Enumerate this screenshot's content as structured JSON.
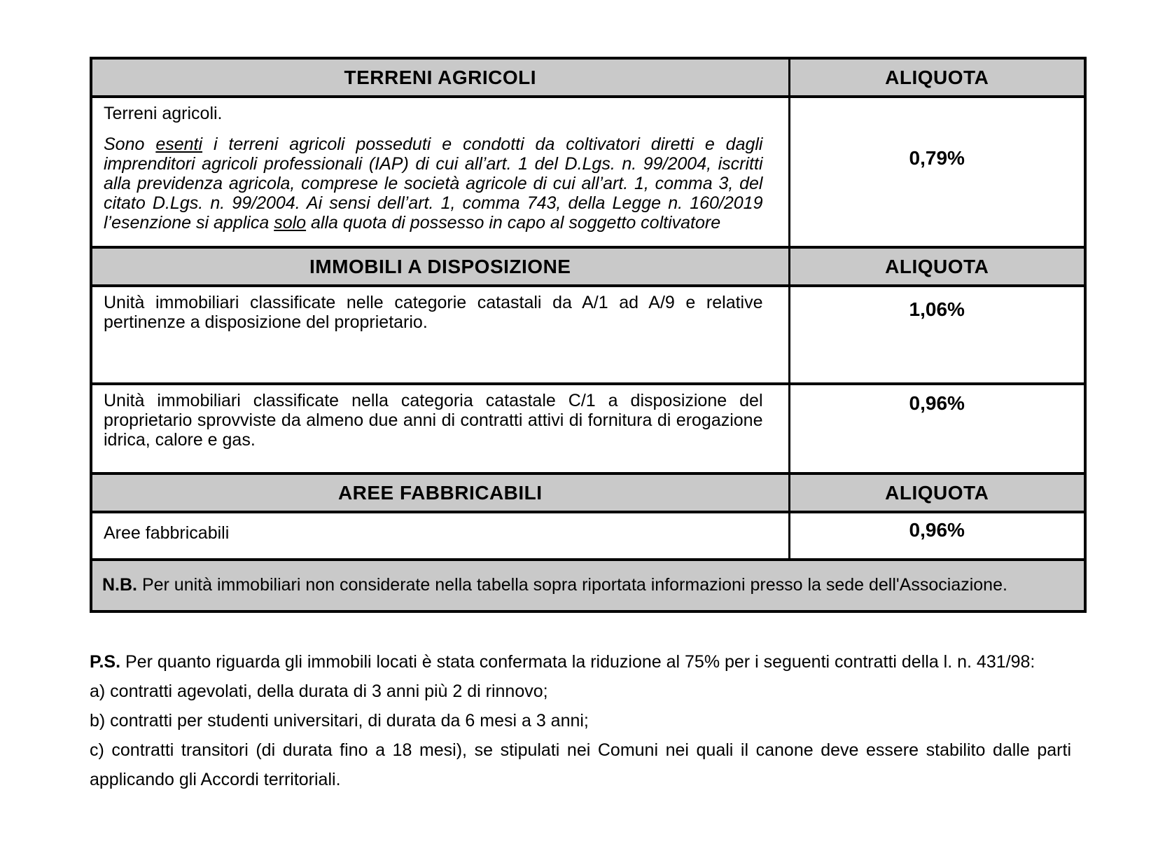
{
  "colors": {
    "page_bg": "#ffffff",
    "header_bg": "#c9c9c9",
    "border": "#000000",
    "text": "#000000"
  },
  "table": {
    "sections": [
      {
        "title": "TERRENI AGRICOLI",
        "aliquota_label": "ALIQUOTA",
        "lead": "Terreni agricoli.",
        "exempt_note_segments": [
          {
            "t": "Sono "
          },
          {
            "t": "esenti",
            "u": true
          },
          {
            "t": " i terreni agricoli posseduti e condotti da coltivatori diretti e dagli imprenditori agricoli professionali (IAP) di cui all’art. 1 del D.Lgs. n. 99/2004, iscritti alla previdenza agricola, comprese le società agricole di cui all’art. 1, comma 3, del citato D.Lgs. n. 99/2004. Ai sensi dell’art. 1, comma 743, della Legge n. 160/2019 l’esenzione si applica "
          },
          {
            "t": "solo",
            "u": true
          },
          {
            "t": " alla quota di possesso in capo al soggetto coltivatore"
          }
        ],
        "rate": "0,79%"
      },
      {
        "title": "IMMOBILI A DISPOSIZIONE",
        "aliquota_label": "ALIQUOTA",
        "rows": [
          {
            "text": "Unità immobiliari classificate nelle categorie catastali da A/1 ad A/9 e relative pertinenze a disposizione del proprietario.",
            "rate": "1,06%"
          },
          {
            "text": "Unità immobiliari classificate nella categoria catastale C/1 a disposizione del proprietario sprovviste da almeno due anni di contratti attivi di fornitura di erogazione idrica, calore e gas.",
            "rate": "0,96%"
          }
        ]
      },
      {
        "title": "AREE FABBRICABILI",
        "aliquota_label": "ALIQUOTA",
        "rows": [
          {
            "text": "Aree fabbricabili",
            "rate": "0,96%"
          }
        ]
      }
    ],
    "note": {
      "prefix": "N.B.",
      "text": "Per unità immobiliari non considerate nella tabella sopra riportata informazioni presso la sede dell'Associazione."
    }
  },
  "footer": {
    "ps_prefix": "P.S.",
    "ps_text": "Per quanto riguarda gli immobili locati è stata confermata la riduzione al 75% per i seguenti contratti della l. n. 431/98:",
    "items": [
      "a) contratti agevolati, della durata di 3 anni più 2 di rinnovo;",
      "b) contratti per studenti universitari, di durata da 6 mesi a 3 anni;",
      "c) contratti transitori (di durata fino a 18 mesi), se stipulati nei Comuni nei quali il canone deve essere stabilito dalle parti applicando gli Accordi territoriali."
    ]
  }
}
